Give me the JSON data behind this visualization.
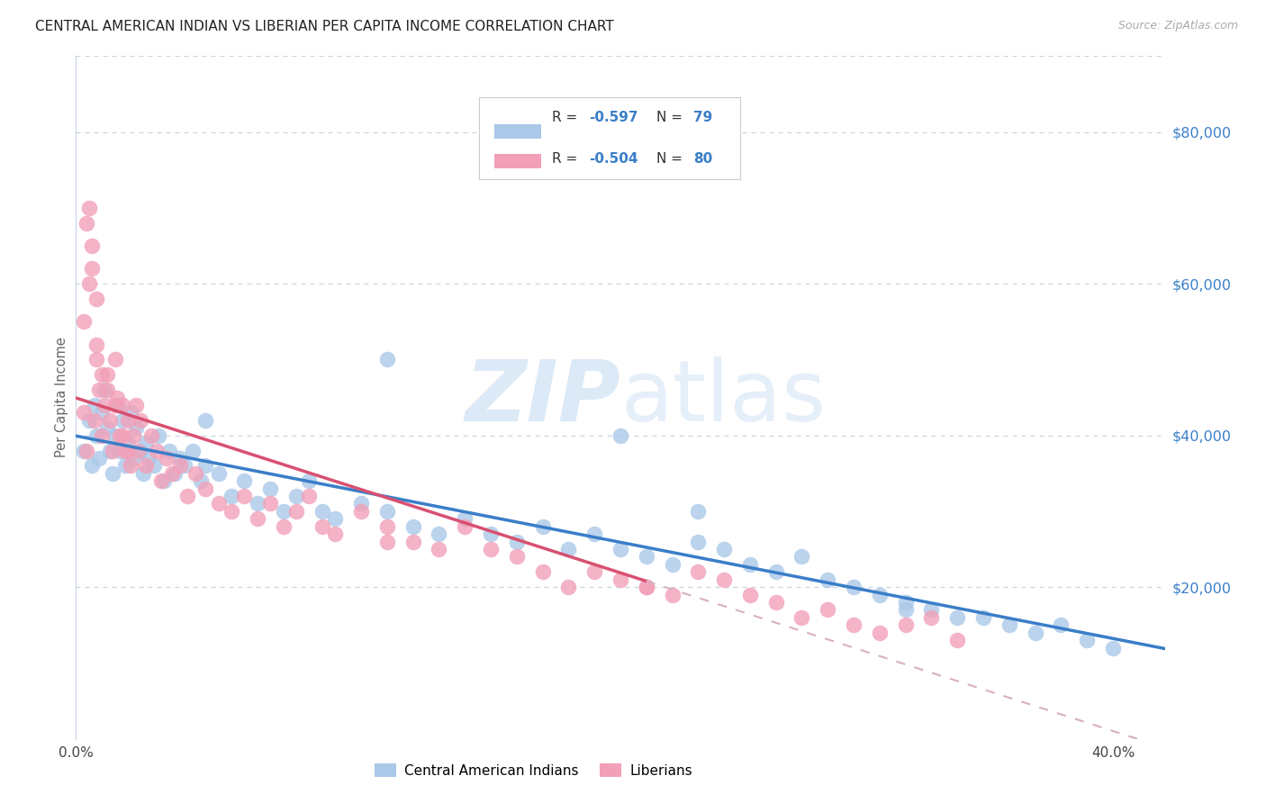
{
  "title": "CENTRAL AMERICAN INDIAN VS LIBERIAN PER CAPITA INCOME CORRELATION CHART",
  "source": "Source: ZipAtlas.com",
  "ylabel": "Per Capita Income",
  "xlim": [
    0.0,
    0.42
  ],
  "ylim": [
    0,
    90000
  ],
  "yticks": [
    20000,
    40000,
    60000,
    80000
  ],
  "ytick_labels": [
    "$20,000",
    "$40,000",
    "$60,000",
    "$80,000"
  ],
  "xticks": [
    0.0,
    0.05,
    0.1,
    0.15,
    0.2,
    0.25,
    0.3,
    0.35,
    0.4
  ],
  "xtick_labels": [
    "0.0%",
    "",
    "",
    "",
    "",
    "",
    "",
    "",
    "40.0%"
  ],
  "blue_color": "#aac8e8",
  "pink_color": "#f2a0b8",
  "blue_line_color": "#3a7ec8",
  "pink_line_color": "#d85070",
  "pink_dash_color": "#d8b0c0",
  "watermark_color": "#ddeaf6",
  "legend_r_blue": "-0.597",
  "legend_n_blue": "79",
  "legend_r_pink": "-0.504",
  "legend_n_pink": "80",
  "background_color": "#ffffff",
  "grid_color": "#c8d4e0",
  "title_color": "#222222",
  "source_color": "#aaaaaa",
  "ylabel_color": "#666666",
  "blue_scatter_x": [
    0.003,
    0.005,
    0.006,
    0.007,
    0.008,
    0.009,
    0.01,
    0.011,
    0.012,
    0.013,
    0.014,
    0.015,
    0.016,
    0.017,
    0.018,
    0.019,
    0.02,
    0.021,
    0.022,
    0.023,
    0.025,
    0.026,
    0.027,
    0.028,
    0.03,
    0.032,
    0.034,
    0.036,
    0.038,
    0.04,
    0.042,
    0.045,
    0.048,
    0.05,
    0.055,
    0.06,
    0.065,
    0.07,
    0.075,
    0.08,
    0.085,
    0.09,
    0.095,
    0.1,
    0.11,
    0.12,
    0.13,
    0.14,
    0.15,
    0.16,
    0.17,
    0.18,
    0.19,
    0.2,
    0.21,
    0.22,
    0.23,
    0.24,
    0.25,
    0.26,
    0.27,
    0.28,
    0.29,
    0.3,
    0.31,
    0.32,
    0.33,
    0.34,
    0.35,
    0.36,
    0.37,
    0.38,
    0.39,
    0.4,
    0.05,
    0.12,
    0.21,
    0.24,
    0.32
  ],
  "blue_scatter_y": [
    38000,
    42000,
    36000,
    44000,
    40000,
    37000,
    43000,
    46000,
    41000,
    38000,
    35000,
    40000,
    44000,
    38000,
    42000,
    36000,
    39000,
    43000,
    37000,
    41000,
    38000,
    35000,
    39000,
    37000,
    36000,
    40000,
    34000,
    38000,
    35000,
    37000,
    36000,
    38000,
    34000,
    36000,
    35000,
    32000,
    34000,
    31000,
    33000,
    30000,
    32000,
    34000,
    30000,
    29000,
    31000,
    30000,
    28000,
    27000,
    29000,
    27000,
    26000,
    28000,
    25000,
    27000,
    25000,
    24000,
    23000,
    26000,
    25000,
    23000,
    22000,
    24000,
    21000,
    20000,
    19000,
    18000,
    17000,
    16000,
    16000,
    15000,
    14000,
    15000,
    13000,
    12000,
    42000,
    50000,
    40000,
    30000,
    17000
  ],
  "pink_scatter_x": [
    0.003,
    0.004,
    0.005,
    0.006,
    0.007,
    0.008,
    0.008,
    0.009,
    0.01,
    0.011,
    0.012,
    0.013,
    0.014,
    0.015,
    0.016,
    0.017,
    0.018,
    0.019,
    0.02,
    0.021,
    0.022,
    0.023,
    0.024,
    0.025,
    0.027,
    0.029,
    0.031,
    0.033,
    0.035,
    0.037,
    0.04,
    0.043,
    0.046,
    0.05,
    0.055,
    0.06,
    0.065,
    0.07,
    0.075,
    0.08,
    0.085,
    0.09,
    0.095,
    0.1,
    0.11,
    0.12,
    0.13,
    0.14,
    0.15,
    0.16,
    0.17,
    0.18,
    0.19,
    0.2,
    0.21,
    0.22,
    0.23,
    0.24,
    0.25,
    0.26,
    0.27,
    0.28,
    0.29,
    0.3,
    0.31,
    0.32,
    0.33,
    0.34,
    0.003,
    0.004,
    0.005,
    0.006,
    0.008,
    0.01,
    0.012,
    0.015,
    0.018,
    0.02,
    0.12,
    0.22
  ],
  "pink_scatter_y": [
    43000,
    38000,
    60000,
    65000,
    42000,
    58000,
    50000,
    46000,
    40000,
    44000,
    48000,
    42000,
    38000,
    50000,
    45000,
    40000,
    44000,
    38000,
    42000,
    36000,
    40000,
    44000,
    38000,
    42000,
    36000,
    40000,
    38000,
    34000,
    37000,
    35000,
    36000,
    32000,
    35000,
    33000,
    31000,
    30000,
    32000,
    29000,
    31000,
    28000,
    30000,
    32000,
    28000,
    27000,
    30000,
    28000,
    26000,
    25000,
    28000,
    25000,
    24000,
    22000,
    20000,
    22000,
    21000,
    20000,
    19000,
    22000,
    21000,
    19000,
    18000,
    16000,
    17000,
    15000,
    14000,
    15000,
    16000,
    13000,
    55000,
    68000,
    70000,
    62000,
    52000,
    48000,
    46000,
    44000,
    40000,
    38000,
    26000,
    20000
  ]
}
